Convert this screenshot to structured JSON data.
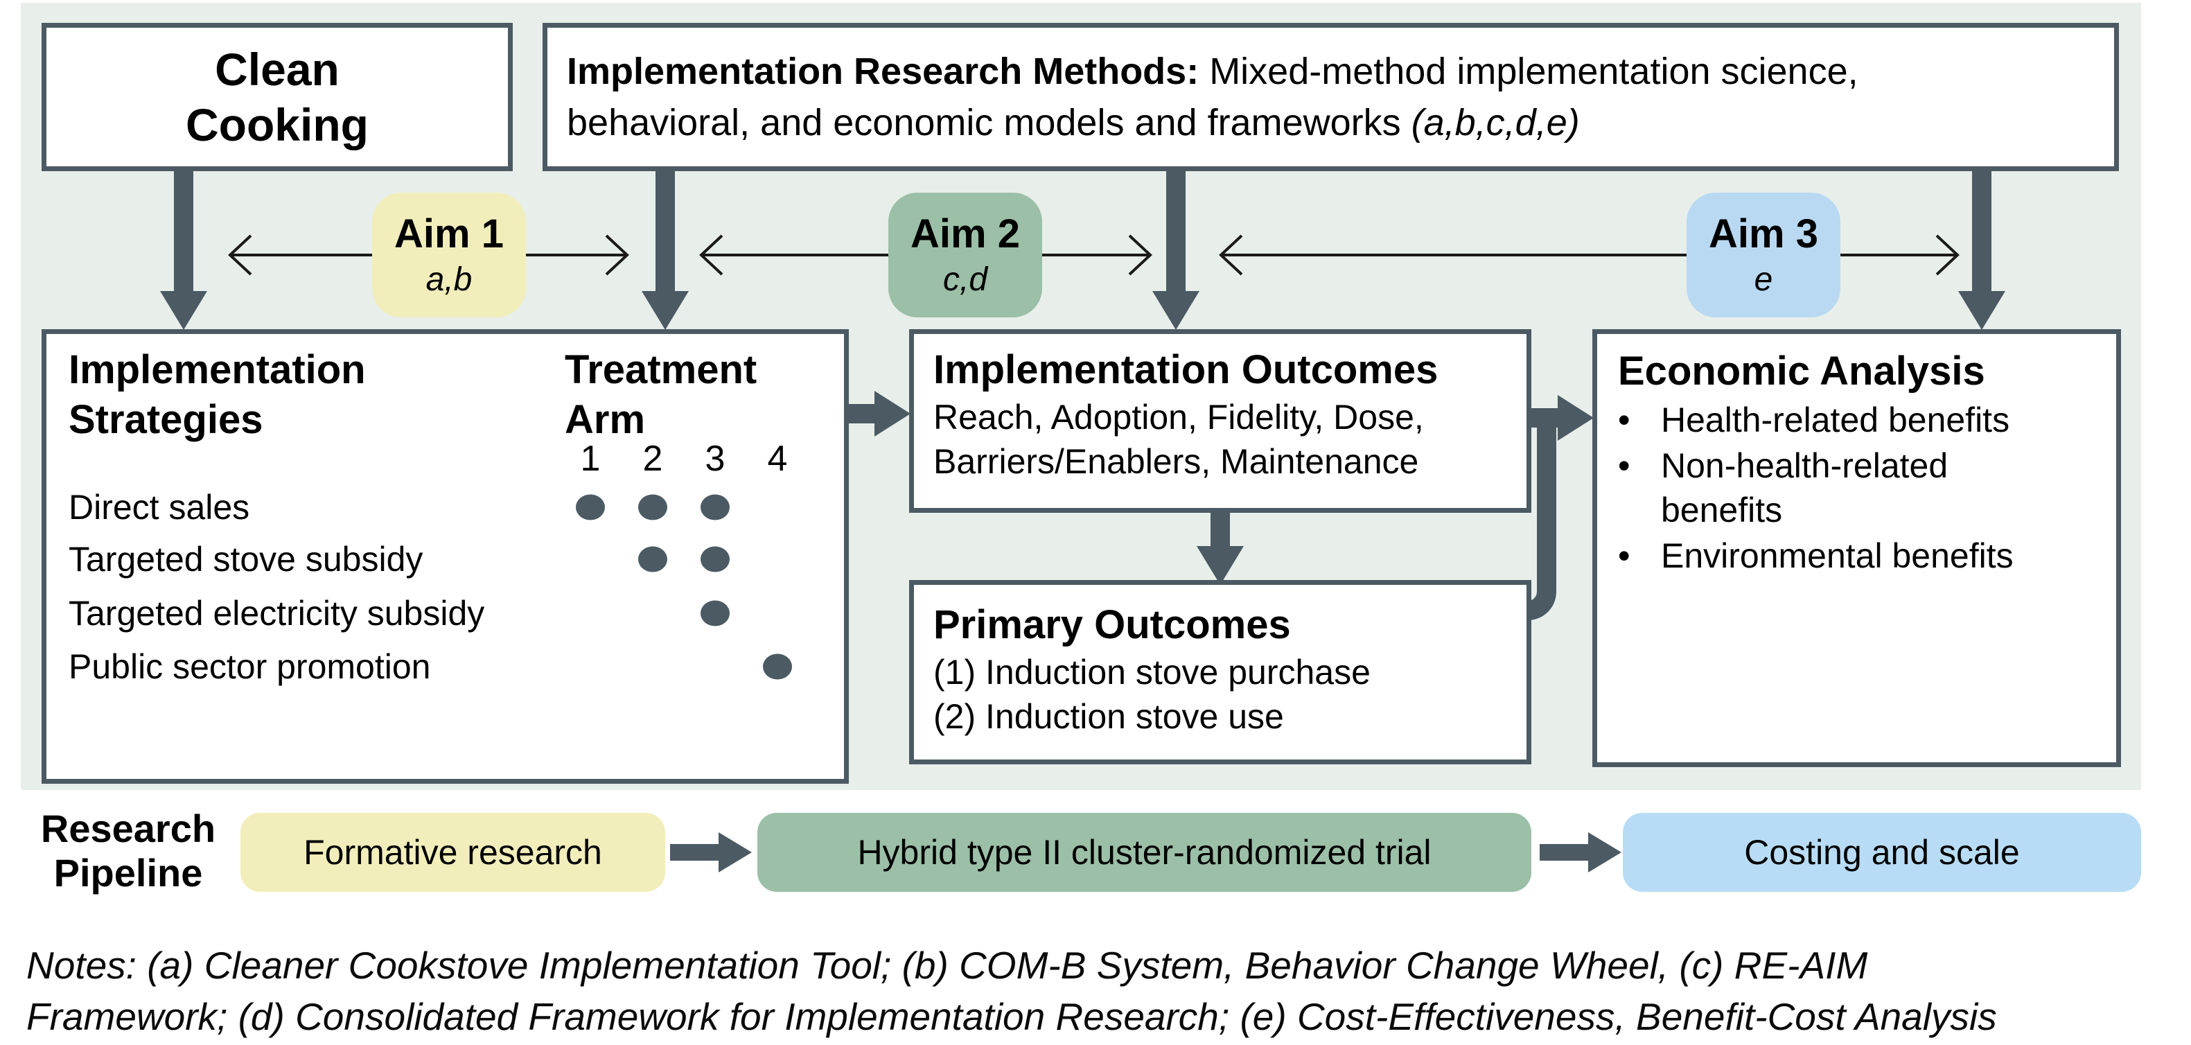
{
  "top_row": {
    "clean_cooking": {
      "title_line1": "Clean",
      "title_line2": "Cooking"
    },
    "methods": {
      "title_bold": "Implementation Research Methods:",
      "line1_rest": " Mixed-method implementation science,",
      "line2_text": "behavioral, and economic models and frameworks ",
      "line2_italic": "(a,b,c,d,e)"
    }
  },
  "aims": [
    {
      "label": "Aim 1",
      "sub": "a,b",
      "color": "#f1eebb"
    },
    {
      "label": "Aim 2",
      "sub": "c,d",
      "color": "#9bbfa7"
    },
    {
      "label": "Aim 3",
      "sub": "e",
      "color": "#b9d9f2"
    }
  ],
  "strategies_box": {
    "title_line1": "Implementation",
    "title_line2": "Strategies",
    "treatment_line1": "Treatment",
    "treatment_line2": "Arm",
    "arm_headers": [
      "1",
      "2",
      "3",
      "4"
    ],
    "rows": [
      {
        "label": "Direct sales",
        "arms": [
          1,
          2,
          3
        ]
      },
      {
        "label": "Targeted stove subsidy",
        "arms": [
          2,
          3
        ]
      },
      {
        "label": "Targeted electricity subsidy",
        "arms": [
          3
        ]
      },
      {
        "label": "Public sector promotion",
        "arms": [
          4
        ]
      }
    ]
  },
  "outcomes_box": {
    "title": "Implementation Outcomes",
    "line1": "Reach, Adoption, Fidelity, Dose,",
    "line2": "Barriers/Enablers, Maintenance"
  },
  "primary_box": {
    "title": "Primary Outcomes",
    "line1": "(1) Induction stove purchase",
    "line2": "(2) Induction stove use"
  },
  "economic_box": {
    "title": "Economic Analysis",
    "bullets": [
      "Health-related benefits",
      "Non-health-related benefits",
      "Environmental benefits"
    ]
  },
  "pipeline": {
    "label_line1": "Research",
    "label_line2": "Pipeline",
    "stages": [
      {
        "label": "Formative research",
        "color": "#f1eebb"
      },
      {
        "label": "Hybrid type II cluster-randomized trial",
        "color": "#9bbfa7"
      },
      {
        "label": "Costing and scale",
        "color": "#b8dcf5"
      }
    ]
  },
  "notes": {
    "line1": "Notes: (a) Cleaner Cookstove Implementation Tool; (b) COM-B System, Behavior Change Wheel, (c) RE-AIM",
    "line2": "Framework; (d) Consolidated Framework for Implementation Research; (e) Cost-Effectiveness, Benefit-Cost Analysis"
  },
  "colors": {
    "panel_bg": "#e8eeea",
    "box_border": "#4b5a63",
    "thick_arrow": "#4b5a63",
    "dot": "#4b5a63",
    "thin_arrow": "#1a1a1a"
  }
}
